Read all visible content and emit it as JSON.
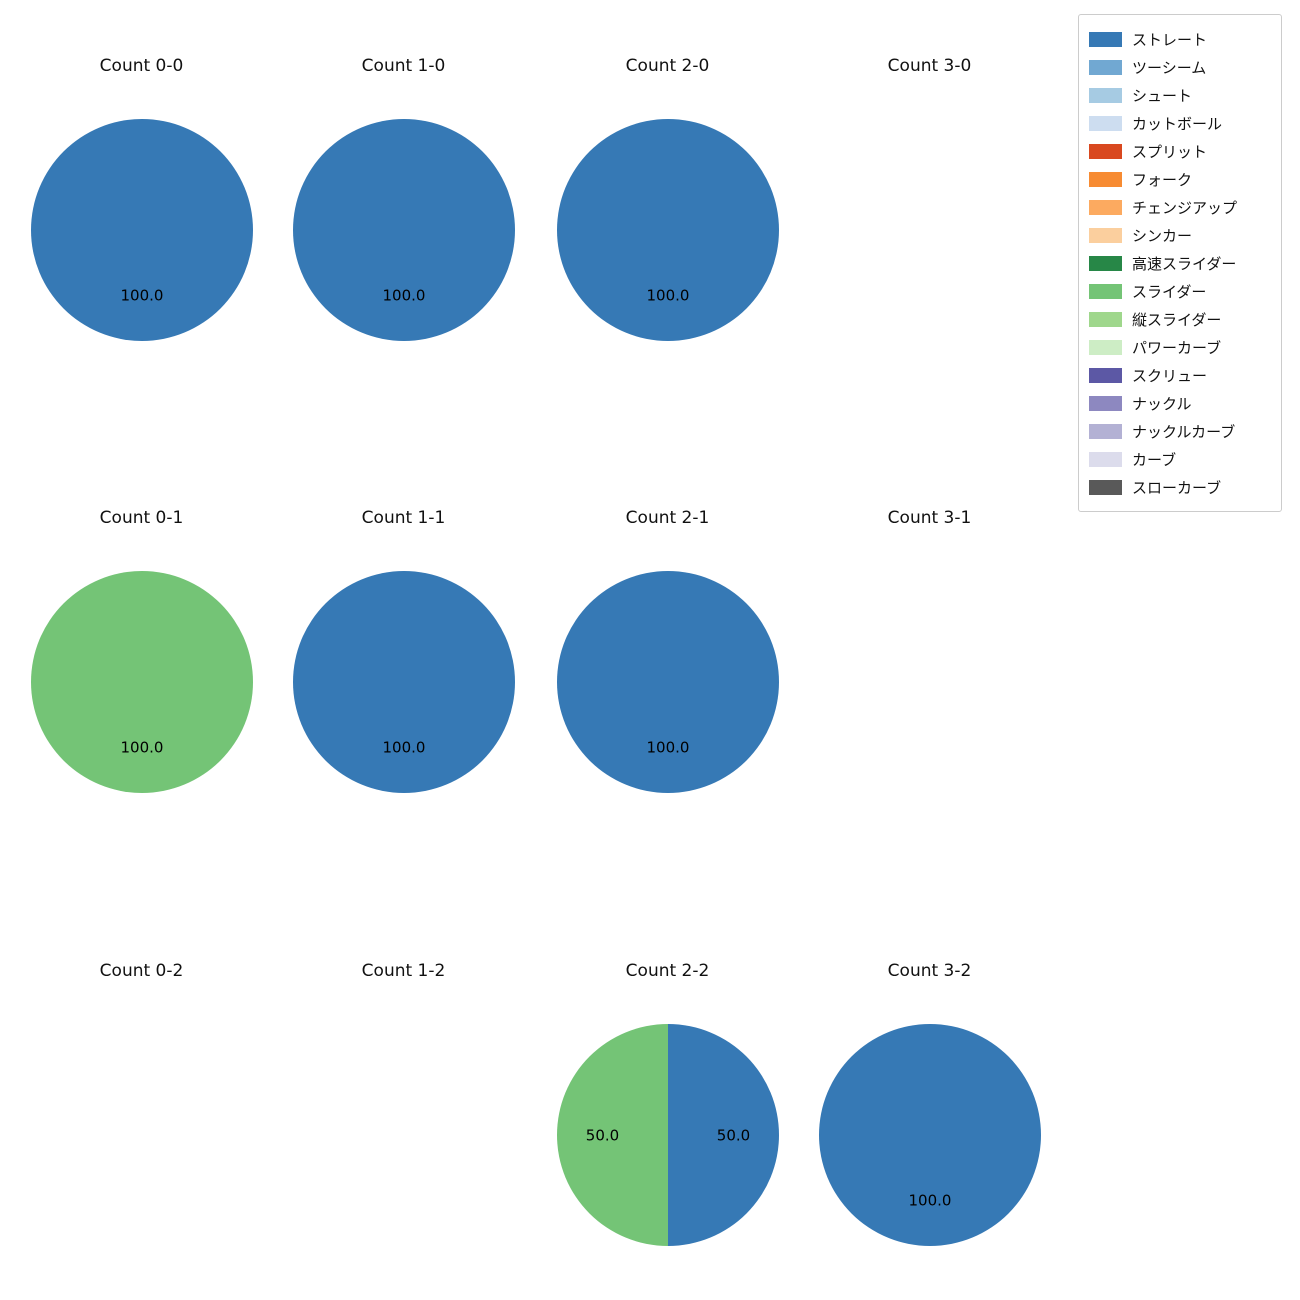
{
  "figure": {
    "background": "#ffffff",
    "text_color": "#111111"
  },
  "legend": {
    "items": [
      {
        "label": "ストレート",
        "color": "#3679b5"
      },
      {
        "label": "ツーシーム",
        "color": "#71a8d2"
      },
      {
        "label": "シュート",
        "color": "#a6cbe3"
      },
      {
        "label": "カットボール",
        "color": "#cdddf0"
      },
      {
        "label": "スプリット",
        "color": "#d9481f"
      },
      {
        "label": "フォーク",
        "color": "#f78b32"
      },
      {
        "label": "チェンジアップ",
        "color": "#fcaa60"
      },
      {
        "label": "シンカー",
        "color": "#fbcf9e"
      },
      {
        "label": "高速スライダー",
        "color": "#278747"
      },
      {
        "label": "スライダー",
        "color": "#74c476"
      },
      {
        "label": "縦スライダー",
        "color": "#9fd78c"
      },
      {
        "label": "パワーカーブ",
        "color": "#cdedc5"
      },
      {
        "label": "スクリュー",
        "color": "#5c58a5"
      },
      {
        "label": "ナックル",
        "color": "#8d88c0"
      },
      {
        "label": "ナックルカーブ",
        "color": "#b3b1d4"
      },
      {
        "label": "カーブ",
        "color": "#dcdcec"
      },
      {
        "label": "スローカーブ",
        "color": "#595959"
      }
    ]
  },
  "chart_data": [
    {
      "type": "pie",
      "title": "Count 0-0",
      "slices": [
        {
          "label": "ストレート",
          "value": 100.0
        }
      ]
    },
    {
      "type": "pie",
      "title": "Count 1-0",
      "slices": [
        {
          "label": "ストレート",
          "value": 100.0
        }
      ]
    },
    {
      "type": "pie",
      "title": "Count 2-0",
      "slices": [
        {
          "label": "ストレート",
          "value": 100.0
        }
      ]
    },
    {
      "type": "pie",
      "title": "Count 3-0",
      "slices": []
    },
    {
      "type": "pie",
      "title": "Count 0-1",
      "slices": [
        {
          "label": "スライダー",
          "value": 100.0
        }
      ]
    },
    {
      "type": "pie",
      "title": "Count 1-1",
      "slices": [
        {
          "label": "ストレート",
          "value": 100.0
        }
      ]
    },
    {
      "type": "pie",
      "title": "Count 2-1",
      "slices": [
        {
          "label": "ストレート",
          "value": 100.0
        }
      ]
    },
    {
      "type": "pie",
      "title": "Count 3-1",
      "slices": []
    },
    {
      "type": "pie",
      "title": "Count 0-2",
      "slices": []
    },
    {
      "type": "pie",
      "title": "Count 1-2",
      "slices": []
    },
    {
      "type": "pie",
      "title": "Count 2-2",
      "slices": [
        {
          "label": "ストレート",
          "value": 50.0
        },
        {
          "label": "スライダー",
          "value": 50.0
        }
      ]
    },
    {
      "type": "pie",
      "title": "Count 3-2",
      "slices": [
        {
          "label": "ストレート",
          "value": 100.0
        }
      ]
    }
  ]
}
